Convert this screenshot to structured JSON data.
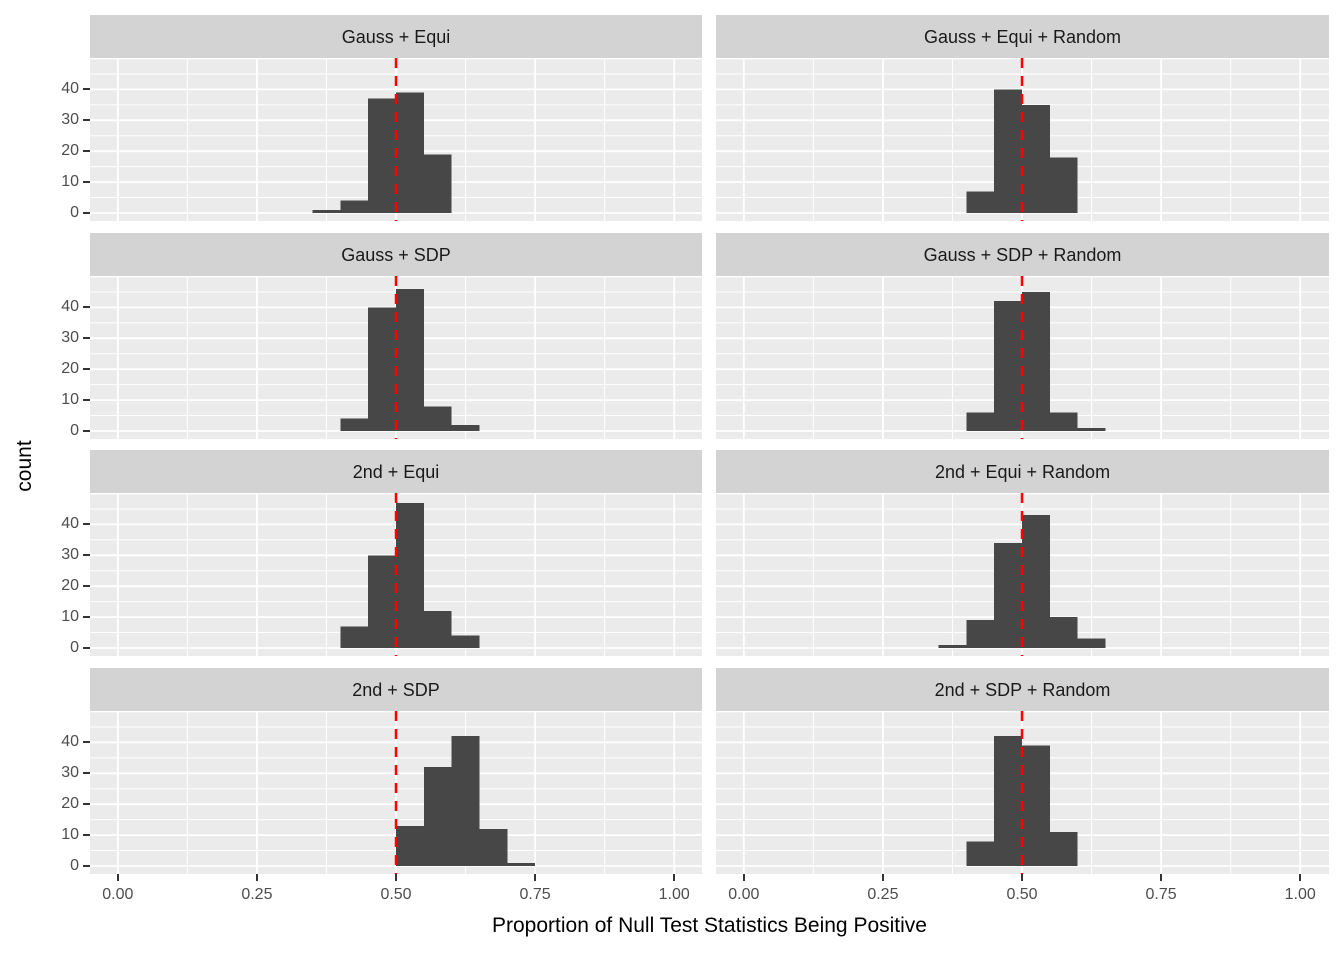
{
  "chart_data": {
    "type": "bar",
    "subtype": "faceted-histogram",
    "title": "",
    "xlabel": "Proportion of Null Test Statistics Being Positive",
    "ylabel": "count",
    "x_ticks": [
      0,
      0.25,
      0.5,
      0.75,
      1
    ],
    "x_tick_labels": [
      "0.00",
      "0.25",
      "0.50",
      "0.75",
      "1.00"
    ],
    "y_ticks": [
      0,
      10,
      20,
      30,
      40
    ],
    "y_tick_labels": [
      "0",
      "10",
      "20",
      "30",
      "40"
    ],
    "xlim": [
      0,
      1
    ],
    "ylim": [
      0,
      50
    ],
    "bin_width": 0.05,
    "vline_x": 0.5,
    "vline_style": "dashed",
    "grid": "major+minor white on grey panel",
    "legend": "none",
    "facet_layout": {
      "rows": 4,
      "cols": 2
    },
    "facets": [
      {
        "title": "Gauss + Equi",
        "bins": [
          {
            "x": 0.35,
            "count": 1
          },
          {
            "x": 0.4,
            "count": 4
          },
          {
            "x": 0.45,
            "count": 37
          },
          {
            "x": 0.5,
            "count": 39
          },
          {
            "x": 0.55,
            "count": 19
          }
        ]
      },
      {
        "title": "Gauss + Equi + Random",
        "bins": [
          {
            "x": 0.4,
            "count": 7
          },
          {
            "x": 0.45,
            "count": 40
          },
          {
            "x": 0.5,
            "count": 35
          },
          {
            "x": 0.55,
            "count": 18
          }
        ]
      },
      {
        "title": "Gauss + SDP",
        "bins": [
          {
            "x": 0.4,
            "count": 4
          },
          {
            "x": 0.45,
            "count": 40
          },
          {
            "x": 0.5,
            "count": 46
          },
          {
            "x": 0.55,
            "count": 8
          },
          {
            "x": 0.6,
            "count": 2
          }
        ]
      },
      {
        "title": "Gauss + SDP + Random",
        "bins": [
          {
            "x": 0.4,
            "count": 6
          },
          {
            "x": 0.45,
            "count": 42
          },
          {
            "x": 0.5,
            "count": 45
          },
          {
            "x": 0.55,
            "count": 6
          },
          {
            "x": 0.6,
            "count": 1
          }
        ]
      },
      {
        "title": "2nd + Equi",
        "bins": [
          {
            "x": 0.4,
            "count": 7
          },
          {
            "x": 0.45,
            "count": 30
          },
          {
            "x": 0.5,
            "count": 47
          },
          {
            "x": 0.55,
            "count": 12
          },
          {
            "x": 0.6,
            "count": 4
          }
        ]
      },
      {
        "title": "2nd + Equi + Random",
        "bins": [
          {
            "x": 0.35,
            "count": 1
          },
          {
            "x": 0.4,
            "count": 9
          },
          {
            "x": 0.45,
            "count": 34
          },
          {
            "x": 0.5,
            "count": 43
          },
          {
            "x": 0.55,
            "count": 10
          },
          {
            "x": 0.6,
            "count": 3
          }
        ]
      },
      {
        "title": "2nd + SDP",
        "bins": [
          {
            "x": 0.5,
            "count": 13
          },
          {
            "x": 0.55,
            "count": 32
          },
          {
            "x": 0.6,
            "count": 42
          },
          {
            "x": 0.65,
            "count": 12
          },
          {
            "x": 0.7,
            "count": 1
          }
        ]
      },
      {
        "title": "2nd + SDP + Random",
        "bins": [
          {
            "x": 0.4,
            "count": 8
          },
          {
            "x": 0.45,
            "count": 42
          },
          {
            "x": 0.5,
            "count": 39
          },
          {
            "x": 0.55,
            "count": 11
          }
        ]
      }
    ]
  },
  "colors": {
    "bar": "#474747",
    "panel_bg": "#EBEBEB",
    "strip_bg": "#D3D3D3",
    "grid": "#FFFFFF",
    "vline": "#FF0000",
    "tick_text": "#4D4D4D",
    "strip_text": "#1A1A1A",
    "axis_tick": "#333333",
    "background": "#FFFFFF"
  }
}
